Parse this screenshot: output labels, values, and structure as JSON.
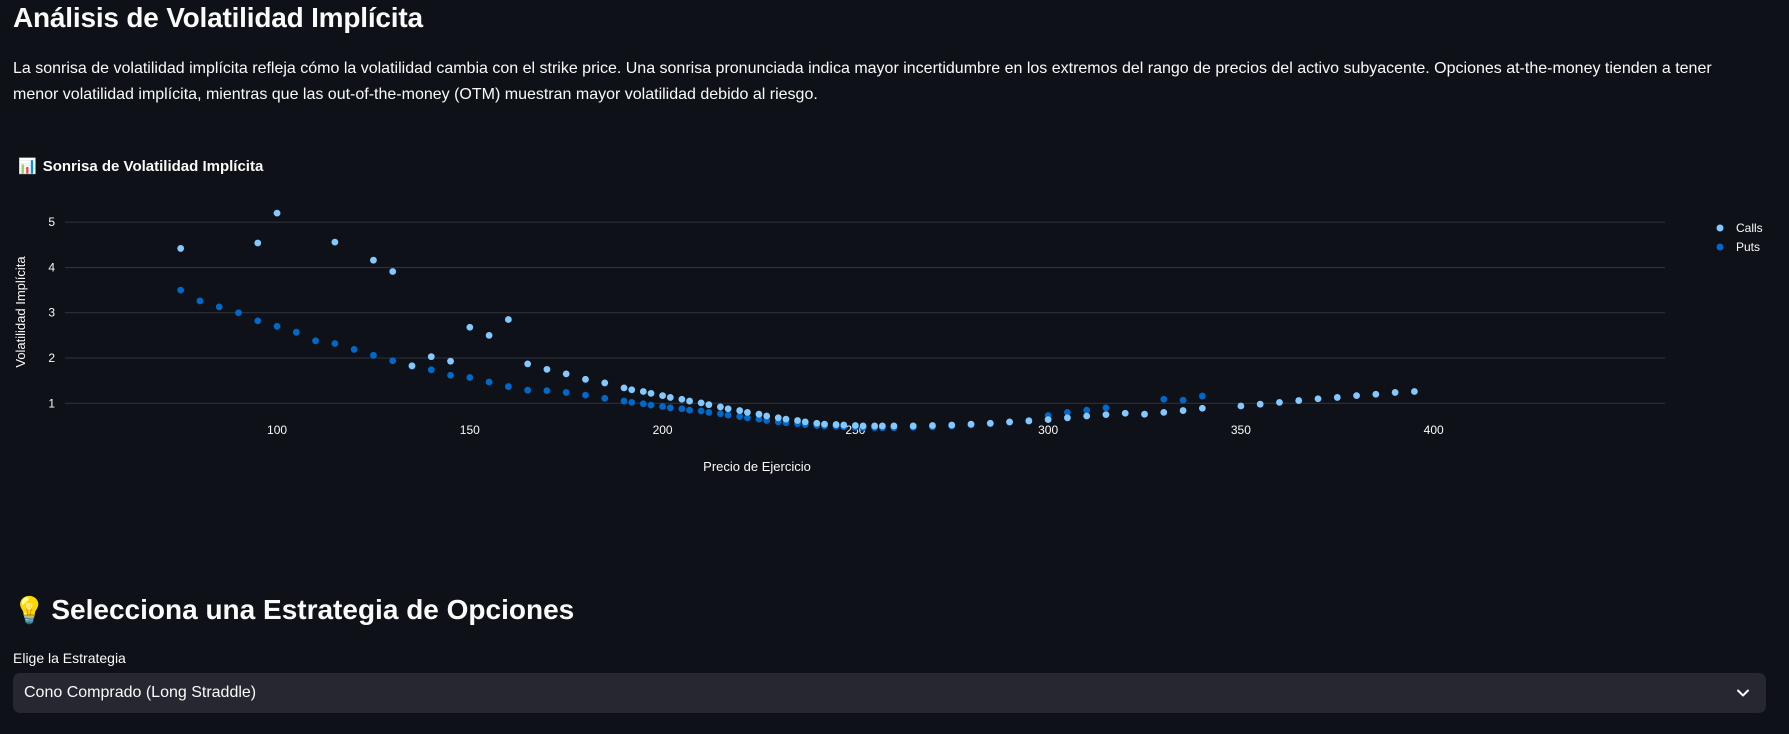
{
  "page": {
    "title": "Análisis de Volatilidad Implícita",
    "intro": "La sonrisa de volatilidad implícita refleja cómo la volatilidad cambia con el strike price. Una sonrisa pronunciada indica mayor incertidumbre en los extremos del rango de precios del activo subyacente. Opciones at-the-money tienden a tener menor volatilidad implícita, mientras que las out-of-the-money (OTM) muestran mayor volatilidad debido al riesgo."
  },
  "chart_section": {
    "emoji": "📊",
    "heading": "Sonrisa de Volatilidad Implícita"
  },
  "strategy_section": {
    "emoji": "💡",
    "title": "Selecciona una Estrategia de Opciones",
    "select_label": "Elige la Estrategia",
    "select_value": "Cono Comprado (Long Straddle)",
    "chevron_icon": "chevron-down-icon"
  },
  "colors": {
    "background": "#0e1117",
    "calls": "#83c9ff",
    "puts": "#0068c9",
    "grid": "#31333f",
    "text": "#fafafa"
  },
  "chart_data": {
    "type": "scatter",
    "title": "",
    "xlabel": "Precio de Ejercicio",
    "ylabel": "Volatilidad Implícita",
    "xlim": [
      45,
      460
    ],
    "ylim": [
      0.3,
      5.6
    ],
    "xticks": [
      100,
      150,
      200,
      250,
      300,
      350,
      400
    ],
    "yticks": [
      1,
      2,
      3,
      4,
      5
    ],
    "grid": "horizontal",
    "legend_position": "top-right",
    "series": [
      {
        "name": "Calls",
        "color": "#83c9ff",
        "x": [
          75,
          95,
          100,
          115,
          125,
          130,
          135,
          140,
          145,
          150,
          155,
          160,
          165,
          170,
          175,
          180,
          185,
          190,
          192,
          195,
          197,
          200,
          202,
          205,
          207,
          210,
          212,
          215,
          217,
          220,
          222,
          225,
          227,
          230,
          232,
          235,
          237,
          240,
          242,
          245,
          247,
          250,
          252,
          255,
          257,
          260,
          265,
          270,
          275,
          280,
          285,
          290,
          295,
          300,
          305,
          310,
          315,
          320,
          325,
          330,
          335,
          340,
          350,
          355,
          360,
          365,
          370,
          375,
          380,
          385,
          390,
          395
        ],
        "y": [
          4.42,
          4.54,
          5.2,
          4.56,
          4.16,
          3.91,
          1.83,
          2.03,
          1.93,
          2.68,
          2.5,
          2.85,
          1.87,
          1.75,
          1.65,
          1.53,
          1.45,
          1.34,
          1.3,
          1.26,
          1.22,
          1.17,
          1.13,
          1.09,
          1.05,
          1.01,
          0.97,
          0.92,
          0.88,
          0.84,
          0.8,
          0.76,
          0.72,
          0.68,
          0.65,
          0.62,
          0.59,
          0.56,
          0.54,
          0.53,
          0.52,
          0.51,
          0.5,
          0.5,
          0.5,
          0.5,
          0.5,
          0.51,
          0.52,
          0.54,
          0.56,
          0.59,
          0.61,
          0.64,
          0.68,
          0.72,
          0.75,
          0.78,
          0.76,
          0.8,
          0.84,
          0.89,
          0.94,
          0.98,
          1.02,
          1.06,
          1.1,
          1.13,
          1.17,
          1.2,
          1.24,
          1.26
        ]
      },
      {
        "name": "Puts",
        "color": "#0068c9",
        "x": [
          75,
          80,
          85,
          90,
          95,
          100,
          105,
          110,
          115,
          120,
          125,
          130,
          135,
          140,
          145,
          150,
          155,
          160,
          165,
          170,
          175,
          180,
          185,
          190,
          192,
          195,
          197,
          200,
          202,
          205,
          207,
          210,
          212,
          215,
          217,
          220,
          222,
          225,
          227,
          230,
          232,
          235,
          237,
          240,
          242,
          245,
          247,
          250,
          252,
          255,
          257,
          260,
          265,
          270,
          275,
          280,
          285,
          290,
          295,
          300,
          305,
          310,
          315,
          330,
          335,
          340
        ],
        "y": [
          3.5,
          3.26,
          3.13,
          3.0,
          2.82,
          2.7,
          2.57,
          2.38,
          2.32,
          2.19,
          2.06,
          1.94,
          1.82,
          1.74,
          1.62,
          1.57,
          1.47,
          1.37,
          1.29,
          1.28,
          1.24,
          1.18,
          1.11,
          1.05,
          1.02,
          0.99,
          0.96,
          0.93,
          0.9,
          0.88,
          0.85,
          0.83,
          0.8,
          0.77,
          0.74,
          0.71,
          0.68,
          0.65,
          0.62,
          0.59,
          0.57,
          0.55,
          0.53,
          0.51,
          0.5,
          0.49,
          0.48,
          0.47,
          0.46,
          0.46,
          0.46,
          0.46,
          0.47,
          0.48,
          0.5,
          0.52,
          0.55,
          0.58,
          0.62,
          0.73,
          0.8,
          0.85,
          0.9,
          1.09,
          1.07,
          1.16
        ]
      }
    ]
  }
}
